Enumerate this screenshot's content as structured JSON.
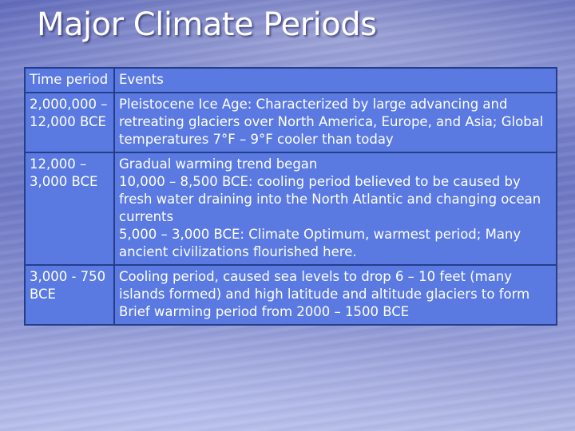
{
  "slide": {
    "title": "Major Climate Periods"
  },
  "table": {
    "headers": {
      "period": "Time period",
      "events": "Events"
    },
    "rows": [
      {
        "period": "2,000,000 – 12,000 BCE",
        "events": [
          "Pleistocene Ice Age: Characterized by large advancing and retreating glaciers over North America, Europe, and Asia; Global temperatures 7°F – 9°F cooler than today"
        ]
      },
      {
        "period": "12,000 – 3,000 BCE",
        "events": [
          "Gradual warming trend began",
          "10,000 – 8,500 BCE: cooling period believed to be caused by fresh water draining into the North Atlantic and changing ocean currents",
          "5,000 – 3,000 BCE: Climate Optimum, warmest period; Many ancient civilizations flourished here."
        ]
      },
      {
        "period": "3,000 - 750 BCE",
        "events": [
          "Cooling period, caused sea levels to drop 6 – 10 feet (many islands formed) and high latitude and altitude glaciers to form",
          "Brief warming period from 2000 – 1500 BCE"
        ]
      }
    ]
  }
}
